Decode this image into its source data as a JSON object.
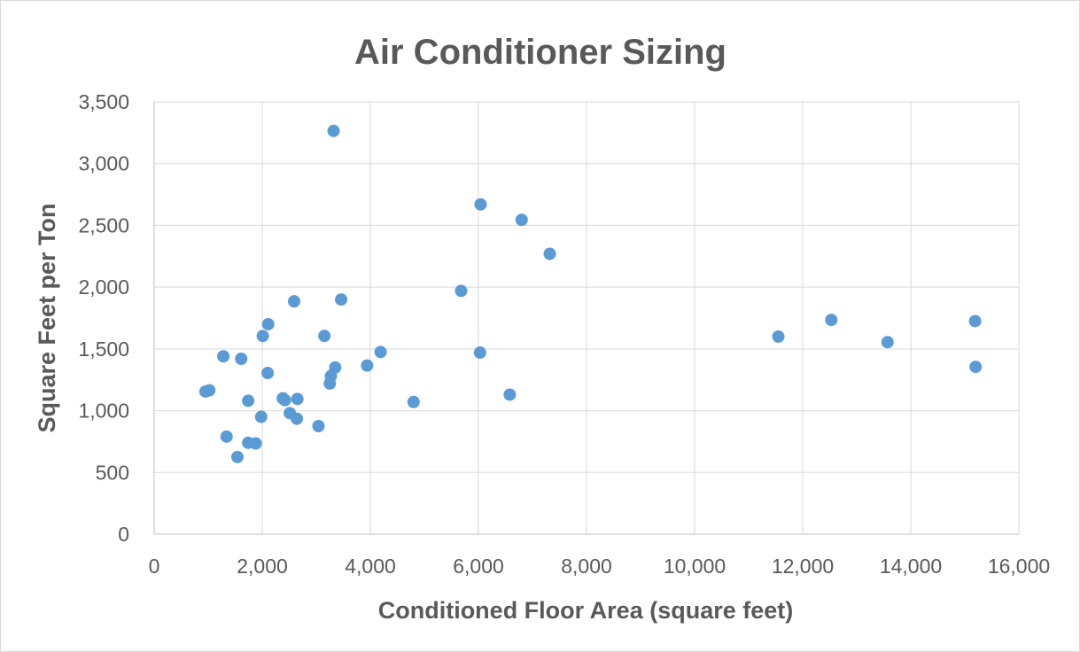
{
  "chart_data": {
    "type": "scatter",
    "title": "Air Conditioner Sizing",
    "xlabel": "Conditioned Floor Area (square feet)",
    "ylabel": "Square Feet per Ton",
    "xlim": [
      0,
      16000
    ],
    "ylim": [
      0,
      3500
    ],
    "xticks": [
      0,
      2000,
      4000,
      6000,
      8000,
      10000,
      12000,
      14000,
      16000
    ],
    "xtick_labels": [
      "0",
      "2,000",
      "4,000",
      "6,000",
      "8,000",
      "10,000",
      "12,000",
      "14,000",
      "16,000"
    ],
    "yticks": [
      0,
      500,
      1000,
      1500,
      2000,
      2500,
      3000,
      3500
    ],
    "ytick_labels": [
      "0",
      "500",
      "1,000",
      "1,500",
      "2,000",
      "2,500",
      "3,000",
      "3,500"
    ],
    "grid": true,
    "legend": "none",
    "color": "#5b9bd5",
    "series": [
      {
        "points": [
          {
            "x": 950,
            "y": 1155
          },
          {
            "x": 1020,
            "y": 1165
          },
          {
            "x": 1280,
            "y": 1440
          },
          {
            "x": 1340,
            "y": 790
          },
          {
            "x": 1540,
            "y": 625
          },
          {
            "x": 1610,
            "y": 1420
          },
          {
            "x": 1740,
            "y": 740
          },
          {
            "x": 1740,
            "y": 1080
          },
          {
            "x": 1880,
            "y": 735
          },
          {
            "x": 1980,
            "y": 950
          },
          {
            "x": 2010,
            "y": 1605
          },
          {
            "x": 2100,
            "y": 1305
          },
          {
            "x": 2110,
            "y": 1700
          },
          {
            "x": 2380,
            "y": 1100
          },
          {
            "x": 2420,
            "y": 1085
          },
          {
            "x": 2510,
            "y": 980
          },
          {
            "x": 2590,
            "y": 1885
          },
          {
            "x": 2640,
            "y": 935
          },
          {
            "x": 2650,
            "y": 1095
          },
          {
            "x": 3040,
            "y": 875
          },
          {
            "x": 3150,
            "y": 1605
          },
          {
            "x": 3250,
            "y": 1220
          },
          {
            "x": 3270,
            "y": 1280
          },
          {
            "x": 3320,
            "y": 3265
          },
          {
            "x": 3350,
            "y": 1350
          },
          {
            "x": 3460,
            "y": 1900
          },
          {
            "x": 3940,
            "y": 1365
          },
          {
            "x": 4190,
            "y": 1475
          },
          {
            "x": 4800,
            "y": 1070
          },
          {
            "x": 5680,
            "y": 1970
          },
          {
            "x": 6030,
            "y": 1470
          },
          {
            "x": 6040,
            "y": 2670
          },
          {
            "x": 6580,
            "y": 1130
          },
          {
            "x": 6800,
            "y": 2545
          },
          {
            "x": 7320,
            "y": 2270
          },
          {
            "x": 11550,
            "y": 1600
          },
          {
            "x": 12530,
            "y": 1735
          },
          {
            "x": 13570,
            "y": 1555
          },
          {
            "x": 15190,
            "y": 1725
          },
          {
            "x": 15200,
            "y": 1355
          }
        ]
      }
    ]
  }
}
